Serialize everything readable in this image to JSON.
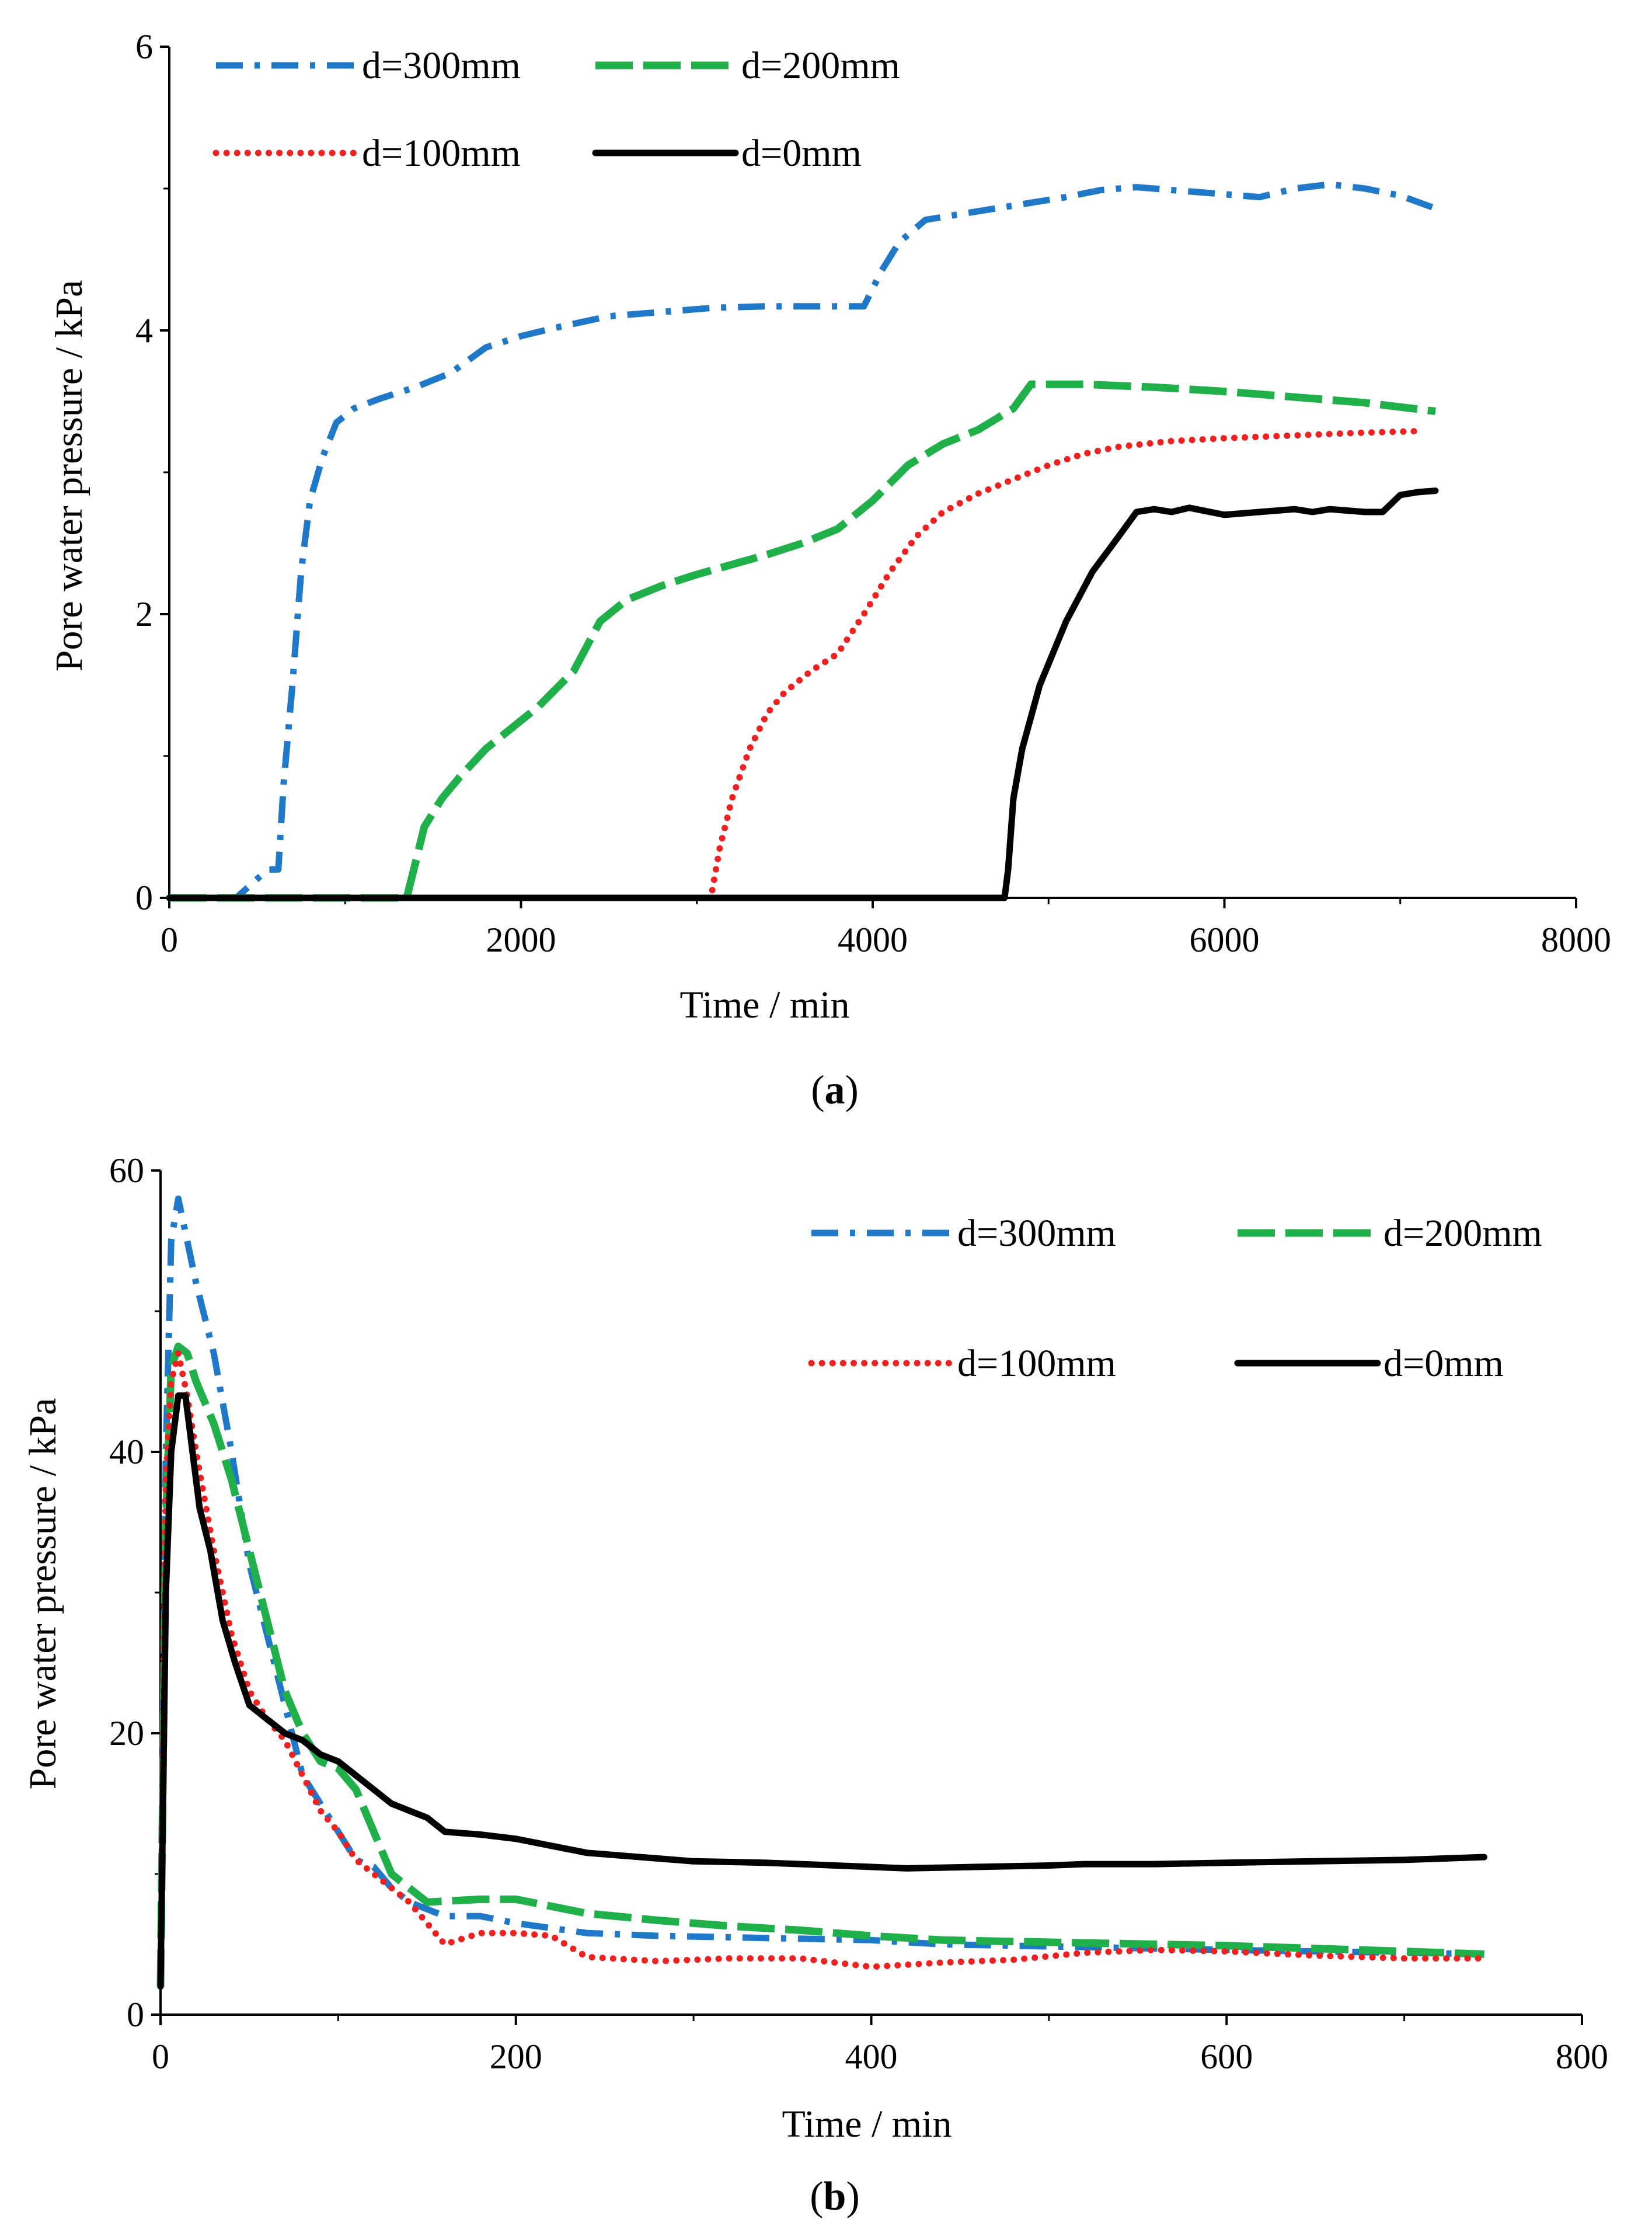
{
  "chart_data": [
    {
      "type": "line",
      "panel": "a",
      "caption_letter": "a",
      "xlabel": "Time / min",
      "ylabel": "Pore water pressure / kPa",
      "xlim": [
        0,
        8000
      ],
      "ylim": [
        0,
        6
      ],
      "xticks": [
        0,
        2000,
        4000,
        6000,
        8000
      ],
      "yticks": [
        0,
        2,
        4,
        6
      ],
      "legend_position": "top-left",
      "series": [
        {
          "name": "d=300mm",
          "style": "dashdot",
          "color": "#1f78c8",
          "x": [
            0,
            380,
            560,
            620,
            650,
            700,
            750,
            800,
            870,
            950,
            1050,
            1200,
            1400,
            1600,
            1800,
            2000,
            2200,
            2500,
            2800,
            3100,
            3400,
            3700,
            3950,
            4050,
            4150,
            4300,
            4500,
            4700,
            4900,
            5100,
            5300,
            5500,
            5800,
            6000,
            6200,
            6400,
            6600,
            6800,
            7000,
            7200
          ],
          "y": [
            0,
            0,
            0.2,
            0.2,
            0.8,
            1.5,
            2.3,
            2.8,
            3.1,
            3.35,
            3.45,
            3.52,
            3.6,
            3.7,
            3.88,
            3.96,
            4.02,
            4.1,
            4.13,
            4.16,
            4.17,
            4.17,
            4.17,
            4.42,
            4.62,
            4.78,
            4.82,
            4.86,
            4.9,
            4.94,
            4.99,
            5.01,
            4.98,
            4.96,
            4.94,
            5.0,
            5.03,
            5.0,
            4.95,
            4.86
          ]
        },
        {
          "name": "d=200mm",
          "style": "longdash",
          "color": "#1fb04a",
          "x": [
            0,
            1350,
            1400,
            1450,
            1550,
            1650,
            1800,
            1950,
            2100,
            2300,
            2450,
            2600,
            2800,
            3000,
            3200,
            3400,
            3600,
            3800,
            4000,
            4200,
            4400,
            4600,
            4800,
            4900,
            5200,
            5600,
            6000,
            6400,
            6800,
            7200
          ],
          "y": [
            0,
            0,
            0.25,
            0.5,
            0.7,
            0.85,
            1.05,
            1.2,
            1.35,
            1.6,
            1.95,
            2.1,
            2.2,
            2.28,
            2.35,
            2.42,
            2.5,
            2.6,
            2.8,
            3.05,
            3.2,
            3.3,
            3.45,
            3.62,
            3.62,
            3.6,
            3.57,
            3.53,
            3.49,
            3.43
          ]
        },
        {
          "name": "d=100mm",
          "style": "dotted",
          "color": "#ee2020",
          "x": [
            0,
            3080,
            3130,
            3200,
            3300,
            3400,
            3500,
            3650,
            3800,
            3950,
            4100,
            4250,
            4400,
            4600,
            4800,
            5000,
            5200,
            5400,
            5700,
            6000,
            6400,
            6800,
            7100
          ],
          "y": [
            0,
            0,
            0.35,
            0.7,
            1.05,
            1.3,
            1.45,
            1.6,
            1.72,
            2.0,
            2.3,
            2.55,
            2.72,
            2.85,
            2.95,
            3.05,
            3.13,
            3.18,
            3.22,
            3.24,
            3.26,
            3.28,
            3.29
          ]
        },
        {
          "name": "d=0mm",
          "style": "solid",
          "color": "#000000",
          "x": [
            0,
            4750,
            4770,
            4800,
            4850,
            4950,
            5100,
            5250,
            5400,
            5500,
            5600,
            5700,
            5800,
            6000,
            6200,
            6400,
            6500,
            6600,
            6700,
            6800,
            6900,
            6950,
            7000,
            7100,
            7200
          ],
          "y": [
            0,
            0,
            0.2,
            0.7,
            1.05,
            1.5,
            1.95,
            2.3,
            2.55,
            2.72,
            2.74,
            2.72,
            2.75,
            2.7,
            2.72,
            2.74,
            2.72,
            2.74,
            2.73,
            2.72,
            2.72,
            2.78,
            2.84,
            2.86,
            2.87
          ]
        }
      ]
    },
    {
      "type": "line",
      "panel": "b",
      "caption_letter": "b",
      "xlabel": "Time / min",
      "ylabel": "Pore water pressure / kPa",
      "xlim": [
        0,
        800
      ],
      "ylim": [
        0,
        60
      ],
      "xticks": [
        0,
        200,
        400,
        600,
        800
      ],
      "yticks": [
        0,
        20,
        40,
        60
      ],
      "legend_position": "top-right",
      "series": [
        {
          "name": "d=300mm",
          "style": "dashdot",
          "color": "#1f78c8",
          "x": [
            0,
            3,
            6,
            10,
            15,
            20,
            30,
            40,
            50,
            60,
            70,
            80,
            90,
            100,
            110,
            120,
            130,
            140,
            160,
            180,
            200,
            240,
            280,
            320,
            360,
            400,
            440,
            480,
            520,
            560,
            600,
            650,
            700,
            745
          ],
          "y": [
            2,
            40,
            55,
            58,
            55,
            52,
            47,
            40,
            32,
            27,
            22,
            17,
            15,
            13,
            11,
            10.5,
            9,
            8,
            7,
            7,
            6.5,
            5.8,
            5.6,
            5.5,
            5.4,
            5.3,
            5.0,
            4.9,
            4.8,
            4.7,
            4.6,
            4.5,
            4.4,
            4.3
          ]
        },
        {
          "name": "d=200mm",
          "style": "longdash",
          "color": "#1fb04a",
          "x": [
            0,
            3,
            6,
            10,
            15,
            20,
            30,
            40,
            50,
            60,
            70,
            80,
            90,
            100,
            110,
            120,
            130,
            140,
            150,
            180,
            200,
            240,
            280,
            320,
            360,
            400,
            440,
            480,
            520,
            560,
            600,
            650,
            700,
            745
          ],
          "y": [
            2,
            35,
            46,
            47.5,
            47,
            45,
            42,
            38,
            33,
            28,
            23,
            20,
            18,
            17.5,
            16,
            13,
            10,
            9,
            8,
            8.2,
            8.2,
            7.2,
            6.7,
            6.3,
            6.0,
            5.6,
            5.3,
            5.2,
            5.1,
            5.0,
            4.9,
            4.7,
            4.5,
            4.3
          ]
        },
        {
          "name": "d=100mm",
          "style": "dotted",
          "color": "#ee2020",
          "x": [
            0,
            3,
            6,
            10,
            15,
            20,
            30,
            40,
            50,
            60,
            70,
            80,
            90,
            100,
            110,
            120,
            140,
            160,
            180,
            200,
            220,
            240,
            280,
            320,
            360,
            400,
            440,
            480,
            520,
            560,
            600,
            650,
            700,
            745
          ],
          "y": [
            2,
            38,
            45,
            47,
            44,
            40,
            33,
            27,
            23,
            21,
            19.5,
            17,
            14.5,
            13,
            11,
            10,
            8,
            5,
            5.8,
            5.8,
            5.6,
            4.1,
            3.8,
            4.0,
            4.0,
            3.4,
            3.7,
            3.9,
            4.4,
            4.6,
            4.5,
            4.2,
            4.0,
            4.0
          ]
        },
        {
          "name": "d=0mm",
          "style": "solid",
          "color": "#000000",
          "x": [
            0,
            3,
            6,
            10,
            14,
            18,
            22,
            28,
            35,
            42,
            50,
            60,
            70,
            80,
            90,
            100,
            110,
            120,
            130,
            140,
            150,
            160,
            180,
            200,
            220,
            240,
            260,
            280,
            300,
            340,
            380,
            420,
            460,
            500,
            520,
            560,
            600,
            650,
            700,
            745
          ],
          "y": [
            2,
            30,
            40,
            44,
            44,
            40,
            36,
            33,
            28,
            25,
            22,
            21,
            20,
            19.5,
            18.5,
            18,
            17,
            16,
            15,
            14.5,
            14,
            13,
            12.8,
            12.5,
            12,
            11.5,
            11.3,
            11.1,
            10.9,
            10.8,
            10.6,
            10.4,
            10.5,
            10.6,
            10.7,
            10.7,
            10.8,
            10.9,
            11.0,
            11.2
          ]
        }
      ]
    }
  ]
}
